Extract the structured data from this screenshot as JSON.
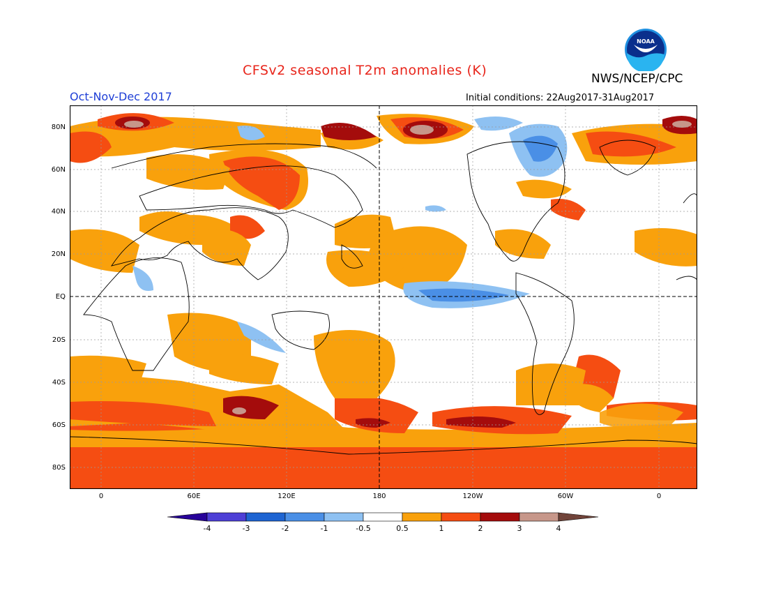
{
  "header": {
    "title": "CFSv2 seasonal T2m anomalies (K)",
    "agency": "NWS/NCEP/CPC",
    "period": "Oct-Nov-Dec 2017",
    "initial_conditions": "Initial conditions: 22Aug2017-31Aug2017",
    "logo_text": "NOAA"
  },
  "map": {
    "lat_labels": [
      "80N",
      "60N",
      "40N",
      "20N",
      "EQ",
      "20S",
      "40S",
      "60S",
      "80S"
    ],
    "lon_labels": [
      "0",
      "60E",
      "120E",
      "180",
      "120W",
      "60W",
      "0"
    ]
  },
  "colorbar": {
    "labels": [
      "-4",
      "-3",
      "-2",
      "-1",
      "-0.5",
      "0.5",
      "1",
      "2",
      "3",
      "4"
    ],
    "colors": [
      "#28039a",
      "#4d3fd6",
      "#1e64d2",
      "#4a8fe6",
      "#8ec1f2",
      "#ffffff",
      "#f9a10c",
      "#f54d12",
      "#a40c0c",
      "#c7978a",
      "#71443a"
    ]
  }
}
